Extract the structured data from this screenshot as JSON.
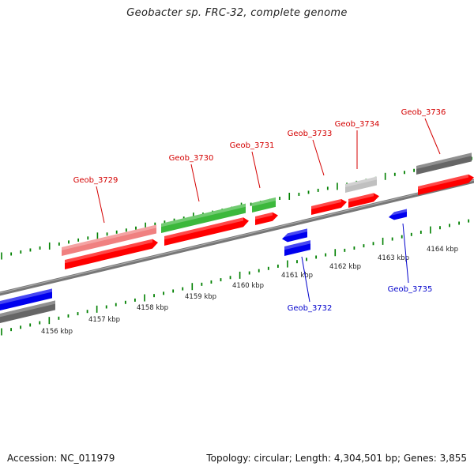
{
  "title": "Geobacter sp. FRC-32, complete genome",
  "footer": {
    "accession": "Accession: NC_011979",
    "stats": "Topology: circular; Length: 4,304,501 bp; Genes: 3,855"
  },
  "colors": {
    "cds_red": "#ff0000",
    "pink": "#f08080",
    "green": "#3cb83c",
    "blue": "#0000ee",
    "gray": "#666666",
    "light_gray": "#c0c0c0",
    "tick_green": "#008000",
    "backbone": "#888888",
    "label_red": "#d40000",
    "label_blue": "#0000cc"
  },
  "scale_labels": [
    {
      "kbp": 4156,
      "text": "4156 kbp"
    },
    {
      "kbp": 4157,
      "text": "4157 kbp"
    },
    {
      "kbp": 4158,
      "text": "4158 kbp"
    },
    {
      "kbp": 4159,
      "text": "4159 kbp"
    },
    {
      "kbp": 4160,
      "text": "4160 kbp"
    },
    {
      "kbp": 4161,
      "text": "4161 kbp"
    },
    {
      "kbp": 4162,
      "text": "4162 kbp"
    },
    {
      "kbp": 4163,
      "text": "4163 kbp"
    },
    {
      "kbp": 4164,
      "text": "4164 kbp"
    }
  ],
  "gene_labels": [
    {
      "text": "Geob_3729",
      "color": "label_red"
    },
    {
      "text": "Geob_3730",
      "color": "label_red"
    },
    {
      "text": "Geob_3731",
      "color": "label_red"
    },
    {
      "text": "Geob_3732",
      "color": "label_blue"
    },
    {
      "text": "Geob_3733",
      "color": "label_red"
    },
    {
      "text": "Geob_3734",
      "color": "label_red"
    },
    {
      "text": "Geob_3735",
      "color": "label_blue"
    },
    {
      "text": "Geob_3736",
      "color": "label_red"
    }
  ]
}
